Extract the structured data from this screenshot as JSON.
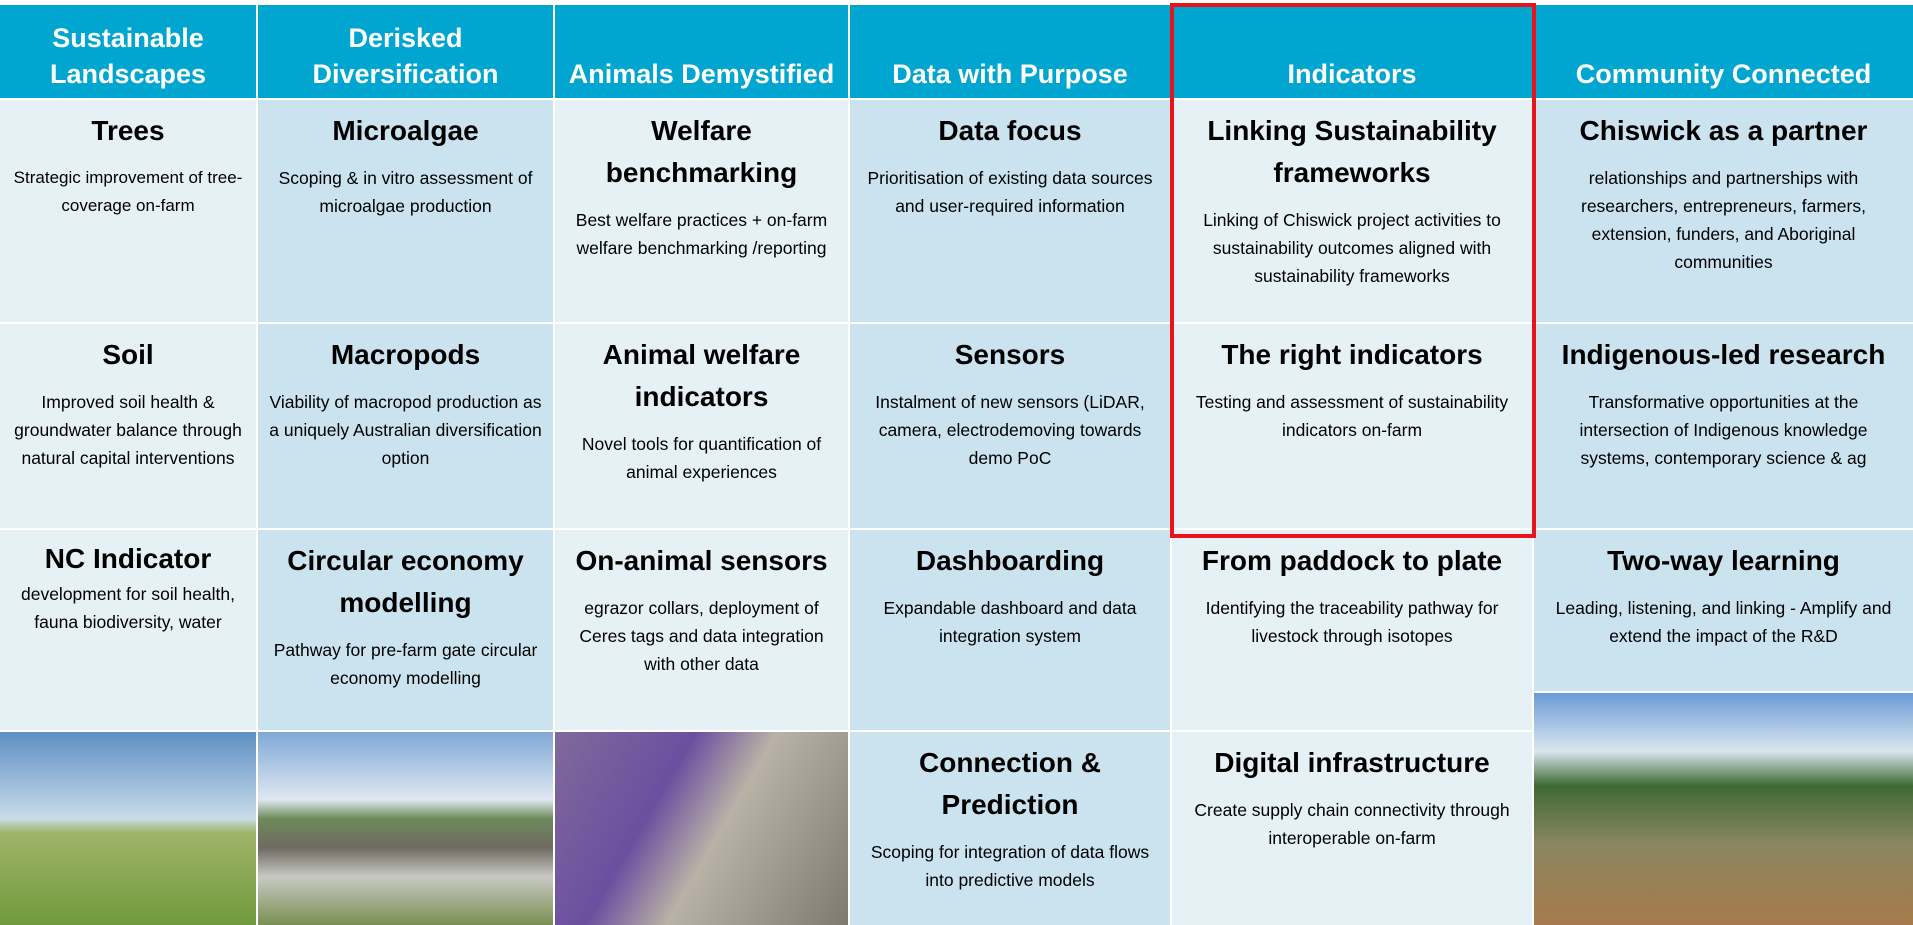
{
  "columns": [
    {
      "header": "Sustainable Landscapes",
      "cells": [
        {
          "title": "Trees",
          "text": "Strategic improvement of tree-coverage on-farm"
        },
        {
          "title": "Soil",
          "text": "Improved soil health & groundwater balance through natural capital interventions"
        },
        {
          "title": "NC Indicator",
          "text": "development for soil health, fauna biodiversity, water"
        }
      ]
    },
    {
      "header": "Derisked Diversification",
      "cells": [
        {
          "title": "Microalgae",
          "text": "Scoping & in vitro assessment of microalgae production"
        },
        {
          "title": "Macropods",
          "text": "Viability of macropod production as a uniquely Australian diversification option"
        },
        {
          "title": "Circular economy modelling",
          "text": "Pathway for pre-farm gate circular economy modelling"
        }
      ]
    },
    {
      "header": "Animals Demystified",
      "cells": [
        {
          "title": "Welfare benchmarking",
          "text": "Best welfare practices + on-farm welfare benchmarking /reporting"
        },
        {
          "title": "Animal welfare indicators",
          "text": "Novel tools for quantification of animal experiences"
        },
        {
          "title": "On-animal sensors",
          "text": "egrazor collars,  deployment of Ceres tags and data integration with other data"
        }
      ]
    },
    {
      "header": "Data with Purpose",
      "cells": [
        {
          "title": "Data focus",
          "text": "Prioritisation of existing data sources and user-required information"
        },
        {
          "title": "Sensors",
          "text": "Instalment of new sensors (LiDAR, camera, electrodemoving towards demo PoC"
        },
        {
          "title": "Dashboarding",
          "text": "Expandable dashboard and data integration system"
        },
        {
          "title": "Connection & Prediction",
          "text": "Scoping for integration of data flows into predictive models"
        }
      ]
    },
    {
      "header": "Indicators",
      "cells": [
        {
          "title": "Linking Sustainability frameworks",
          "text": "Linking of Chiswick project activities to sustainability outcomes aligned with sustainability frameworks"
        },
        {
          "title": "The right indicators",
          "text": "Testing and assessment of sustainability indicators on-farm"
        },
        {
          "title": "From paddock to plate",
          "text": "Identifying the traceability pathway for livestock through isotopes"
        },
        {
          "title": "Digital infrastructure",
          "text": "Create supply chain connectivity through interoperable on-farm"
        }
      ]
    },
    {
      "header": "Community Connected",
      "cells": [
        {
          "title": "Chiswick as a partner",
          "text": "relationships and partnerships with researchers, entrepreneurs, farmers, extension, funders, and Aboriginal communities"
        },
        {
          "title": "Indigenous-led research",
          "text": "Transformative opportunities at the intersection of Indigenous knowledge systems, contemporary science & ag"
        },
        {
          "title": "Two-way learning",
          "text": "Leading, listening, and linking - Amplify and extend the impact of the R&D"
        }
      ]
    }
  ]
}
